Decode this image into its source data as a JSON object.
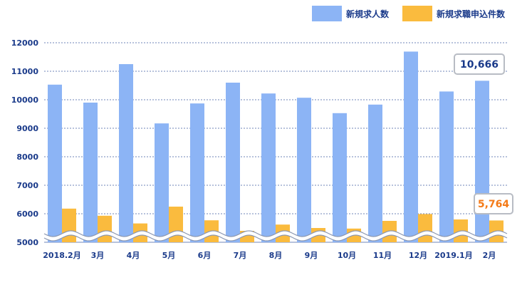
{
  "colors": {
    "series1": "#8cb4f5",
    "series2": "#fabb3e",
    "axis_text": "#1a3a8a",
    "grid": "#6f84b8",
    "callout1_text": "#1a3a8a",
    "callout2_text": "#f47a17"
  },
  "chart_data": {
    "type": "bar",
    "categories": [
      "2018.2月",
      "3月",
      "4月",
      "5月",
      "6月",
      "7月",
      "8月",
      "9月",
      "10月",
      "11月",
      "12月",
      "2019.1月",
      "2月"
    ],
    "series": [
      {
        "name": "新規求人数",
        "values": [
          10530,
          9900,
          11250,
          9170,
          9870,
          10600,
          10220,
          10070,
          9530,
          9830,
          11690,
          10290,
          10666
        ]
      },
      {
        "name": "新規求職申込件数",
        "values": [
          6180,
          5930,
          5660,
          6250,
          5770,
          5400,
          5620,
          5500,
          5480,
          5750,
          5990,
          5800,
          5764
        ]
      }
    ],
    "ylim": [
      5000,
      12000
    ],
    "yticks": [
      5000,
      6000,
      7000,
      8000,
      9000,
      10000,
      11000,
      12000
    ],
    "axis_break": true,
    "grid": true,
    "legend": "top-right",
    "annotations": [
      {
        "text": "10,666",
        "series": 0,
        "category": "2月"
      },
      {
        "text": "5,764",
        "series": 1,
        "category": "2月"
      }
    ]
  }
}
